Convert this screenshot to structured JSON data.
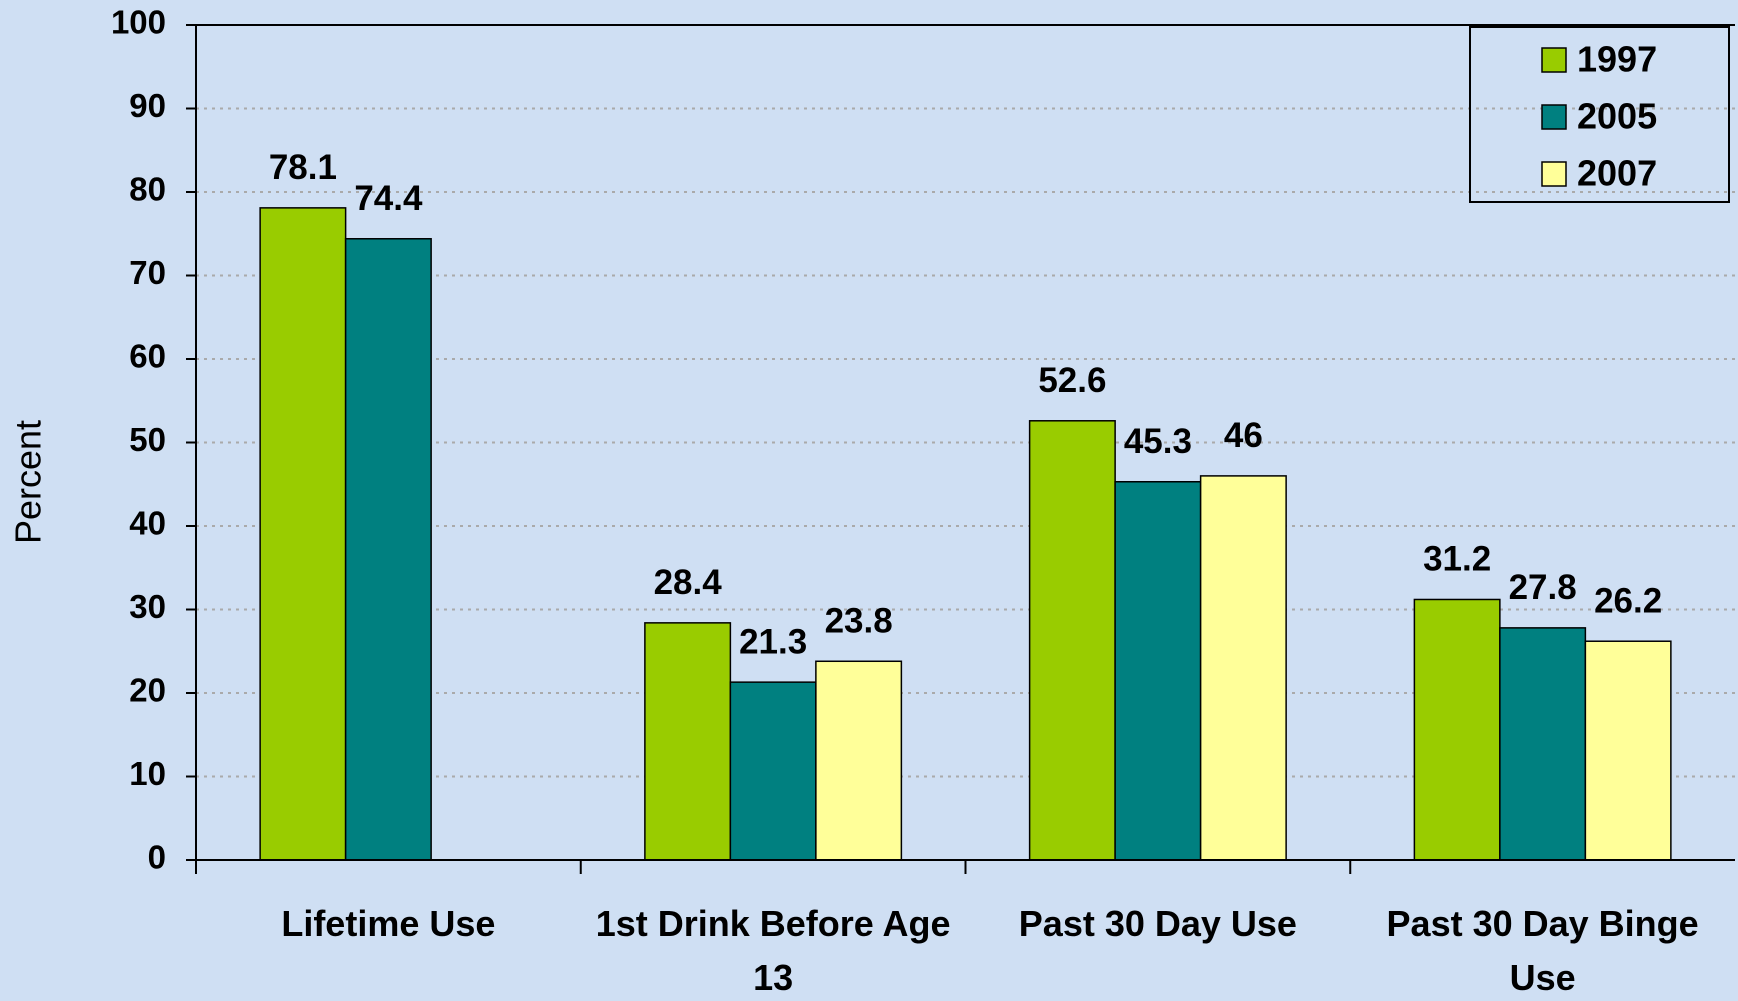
{
  "chart_data": {
    "type": "bar",
    "y_label": "Percent",
    "categories": [
      "Lifetime Use",
      "1st Drink Before Age 13",
      "Past 30 Day Use",
      "Past 30 Day Binge Use"
    ],
    "series": [
      {
        "name": "1997",
        "color": "#99cc00",
        "values": [
          78.1,
          28.4,
          52.6,
          31.2
        ]
      },
      {
        "name": "2005",
        "color": "#008080",
        "values": [
          74.4,
          21.3,
          45.3,
          27.8
        ]
      },
      {
        "name": "2007",
        "color": "#ffff99",
        "values": [
          null,
          23.8,
          46,
          26.2
        ]
      }
    ],
    "ylim": [
      0,
      100
    ],
    "yticks": [
      0,
      10,
      20,
      30,
      40,
      50,
      60,
      70,
      80,
      90,
      100
    ],
    "grid": true,
    "legend": "upper right"
  }
}
